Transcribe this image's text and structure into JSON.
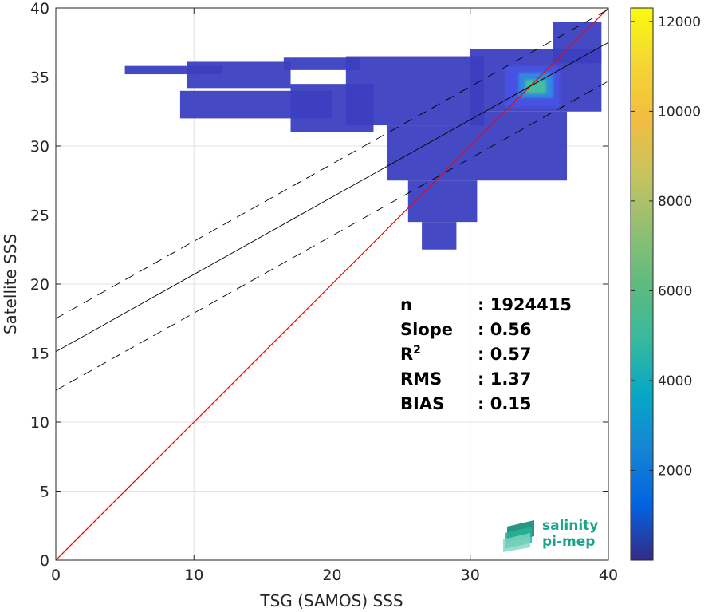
{
  "chart_data": {
    "type": "heatmap",
    "title": "",
    "xlabel": "TSG (SAMOS) SSS",
    "ylabel": "Satellite SSS",
    "xlim": [
      0,
      40
    ],
    "ylim": [
      0,
      40
    ],
    "xticks": [
      0,
      10,
      20,
      30,
      40
    ],
    "yticks": [
      0,
      5,
      10,
      15,
      20,
      25,
      30,
      35,
      40
    ],
    "grid": true,
    "colorbar": {
      "range": [
        0,
        12300
      ],
      "ticks": [
        2000,
        4000,
        6000,
        8000,
        10000,
        12000
      ],
      "colormap": "parula"
    },
    "lines": [
      {
        "name": "identity",
        "slope": 1,
        "intercept": 0,
        "style": "solid",
        "color": "#ff0000"
      },
      {
        "name": "regression",
        "slope": 0.56,
        "intercept": 15.1,
        "style": "solid",
        "color": "#000000"
      },
      {
        "name": "regression_upper",
        "slope": 0.56,
        "intercept": 17.5,
        "style": "dashed",
        "color": "#000000"
      },
      {
        "name": "regression_lower",
        "slope": 0.56,
        "intercept": 12.3,
        "style": "dashed",
        "color": "#000000"
      }
    ],
    "density_regions": [
      {
        "x": [
          5,
          12
        ],
        "y": [
          35.2,
          35.8
        ],
        "level": 1
      },
      {
        "x": [
          9.5,
          17
        ],
        "y": [
          34.2,
          36.1
        ],
        "level": 1
      },
      {
        "x": [
          9,
          20
        ],
        "y": [
          32.0,
          34.0
        ],
        "level": 1
      },
      {
        "x": [
          16.5,
          22
        ],
        "y": [
          35.5,
          36.4
        ],
        "level": 1
      },
      {
        "x": [
          17,
          23
        ],
        "y": [
          31.0,
          34.5
        ],
        "level": 1
      },
      {
        "x": [
          21,
          31
        ],
        "y": [
          31.5,
          36.5
        ],
        "level": 1
      },
      {
        "x": [
          24,
          30
        ],
        "y": [
          27.5,
          31.5
        ],
        "level": 1
      },
      {
        "x": [
          25.5,
          30.5
        ],
        "y": [
          24.5,
          27.5
        ],
        "level": 1
      },
      {
        "x": [
          26.5,
          29
        ],
        "y": [
          22.5,
          24.5
        ],
        "level": 1
      },
      {
        "x": [
          30,
          37
        ],
        "y": [
          27.5,
          32.5
        ],
        "level": 1
      },
      {
        "x": [
          30,
          39.5
        ],
        "y": [
          32.5,
          37.0
        ],
        "level": 1
      },
      {
        "x": [
          36,
          39.5
        ],
        "y": [
          36.0,
          39.0
        ],
        "level": 1
      },
      {
        "x": [
          32.5,
          36.5
        ],
        "y": [
          32.8,
          35.8
        ],
        "level": 2
      },
      {
        "x": [
          33.5,
          36
        ],
        "y": [
          33.5,
          35.3
        ],
        "level": 3
      },
      {
        "x": [
          34,
          35.5
        ],
        "y": [
          33.8,
          34.8
        ],
        "level": 4
      }
    ],
    "stats": [
      {
        "label": "n",
        "value": ": 1924415"
      },
      {
        "label": "Slope",
        "value": ": 0.56"
      },
      {
        "label": "R",
        "sup": "2",
        "value": ": 0.57"
      },
      {
        "label": "RMS",
        "value": ": 1.37"
      },
      {
        "label": "BIAS",
        "value": ": 0.15"
      }
    ]
  },
  "logo": {
    "line1": "salinity",
    "line2": "pi-mep",
    "color": "#1aa58a"
  }
}
